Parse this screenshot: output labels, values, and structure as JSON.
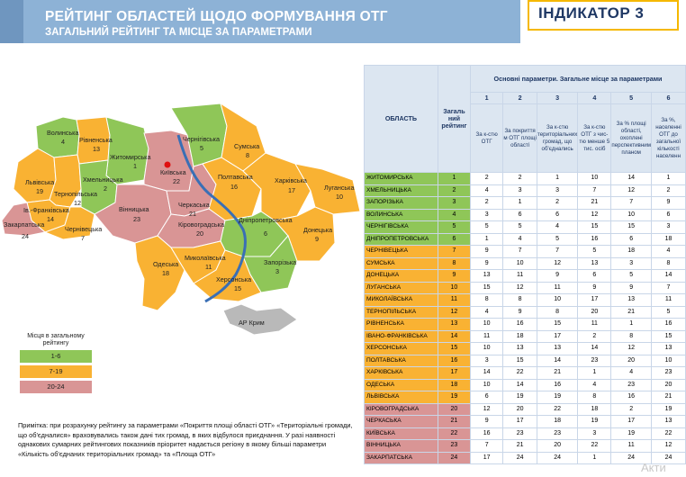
{
  "header": {
    "title": "РЕЙТИНГ ОБЛАСТЕЙ ЩОДО ФОРМУВАННЯ ОТГ",
    "subtitle": "ЗАГАЛЬНИЙ РЕЙТИНГ ТА МІСЦЕ ЗА ПАРАМЕТРАМИ",
    "indicator": "ІНДИКАТОР 3"
  },
  "colors": {
    "green": "#8fc658",
    "yellow": "#f9b233",
    "pink": "#d99595",
    "grey": "#b9b9b9"
  },
  "map": {
    "regions": [
      {
        "name": "Волинська",
        "rank": "4"
      },
      {
        "name": "Рівненська",
        "rank": "13"
      },
      {
        "name": "Житомирська",
        "rank": "1"
      },
      {
        "name": "Чернігівська",
        "rank": "5"
      },
      {
        "name": "Сумська",
        "rank": "8"
      },
      {
        "name": "Київська",
        "rank": "22"
      },
      {
        "name": "Львівська",
        "rank": "19"
      },
      {
        "name": "Хмельницька",
        "rank": "2"
      },
      {
        "name": "Тернопільська",
        "rank": "12"
      },
      {
        "name": "Ів.-Франківська",
        "rank": "14"
      },
      {
        "name": "Закарпатська",
        "rank": "24"
      },
      {
        "name": "Чернівецька",
        "rank": "7"
      },
      {
        "name": "Вінницька",
        "rank": "23"
      },
      {
        "name": "Черкаська",
        "rank": "21"
      },
      {
        "name": "Полтавська",
        "rank": "16"
      },
      {
        "name": "Харківська",
        "rank": "17"
      },
      {
        "name": "Луганська",
        "rank": "10"
      },
      {
        "name": "Кіровоградська",
        "rank": "20"
      },
      {
        "name": "Дніпропетровська",
        "rank": "6"
      },
      {
        "name": "Донецька",
        "rank": "9"
      },
      {
        "name": "Одеська",
        "rank": "18"
      },
      {
        "name": "Миколаївська",
        "rank": "11"
      },
      {
        "name": "Запорізька",
        "rank": "3"
      },
      {
        "name": "Херсонська",
        "rank": "15"
      },
      {
        "name": "АР Крим",
        "rank": ""
      }
    ]
  },
  "legend": {
    "title": "Місця в загальному рейтингу",
    "items": [
      "1-6",
      "7-19",
      "20-24"
    ]
  },
  "note": "Примітка: при розрахунку рейтингу за параметрами «Покриття площі області ОТГ» «Територіальні громади, що об'єдналися» враховувались також дані тих громад, в яких відбулося приєднання. У разі наявності однакових сумарних рейтингових показників пріоритет надається регіону в якому більші параметри «Кількість об'єднаних територіальних громад» та «Площа ОТГ»",
  "table": {
    "col_oblast": "ОБЛАСТЬ",
    "col_rating": "Загаль ний рейтинг",
    "group_header": "Основні параметри. Загальне місце за параметрами",
    "param_numbers": [
      "1",
      "2",
      "3",
      "4",
      "5",
      "6"
    ],
    "param_names": [
      "За к-стю ОТГ",
      "За покриття м ОТГ площі області",
      "За к-стю територіальних громад, що об'єднались",
      "За к-стю ОТГ з чис-тю менше 5 тис. осіб",
      "За % площі області, охоплені перспективним планом",
      "За %, населенні ОТГ до загальної кількості населенн"
    ],
    "rows": [
      {
        "name": "ЖИТОМИРСЬКА",
        "rank": "1",
        "p": [
          "2",
          "2",
          "1",
          "10",
          "14",
          "1"
        ],
        "color": "g"
      },
      {
        "name": "ХМЕЛЬНИЦЬКА",
        "rank": "2",
        "p": [
          "4",
          "3",
          "3",
          "7",
          "12",
          "2"
        ],
        "color": "g"
      },
      {
        "name": "ЗАПОРІЗЬКА",
        "rank": "3",
        "p": [
          "2",
          "1",
          "2",
          "21",
          "7",
          "9"
        ],
        "color": "g"
      },
      {
        "name": "ВОЛИНСЬКА",
        "rank": "4",
        "p": [
          "3",
          "6",
          "6",
          "12",
          "10",
          "6"
        ],
        "color": "g"
      },
      {
        "name": "ЧЕРНІГІВСЬКА",
        "rank": "5",
        "p": [
          "5",
          "5",
          "4",
          "15",
          "15",
          "3"
        ],
        "color": "g"
      },
      {
        "name": "ДНІПРОПЕТРОВСЬКА",
        "rank": "6",
        "p": [
          "1",
          "4",
          "5",
          "16",
          "6",
          "18"
        ],
        "color": "g"
      },
      {
        "name": "ЧЕРНІВЕЦЬКА",
        "rank": "7",
        "p": [
          "9",
          "7",
          "7",
          "5",
          "18",
          "4"
        ],
        "color": "y"
      },
      {
        "name": "СУМСЬКА",
        "rank": "8",
        "p": [
          "9",
          "10",
          "12",
          "13",
          "3",
          "8"
        ],
        "color": "y"
      },
      {
        "name": "ДОНЕЦЬКА",
        "rank": "9",
        "p": [
          "13",
          "11",
          "9",
          "6",
          "5",
          "14"
        ],
        "color": "y"
      },
      {
        "name": "ЛУГАНСЬКА",
        "rank": "10",
        "p": [
          "15",
          "12",
          "11",
          "9",
          "9",
          "7"
        ],
        "color": "y"
      },
      {
        "name": "МИКОЛАЇВСЬКА",
        "rank": "11",
        "p": [
          "8",
          "8",
          "10",
          "17",
          "13",
          "11"
        ],
        "color": "y"
      },
      {
        "name": "ТЕРНОПІЛЬСЬКА",
        "rank": "12",
        "p": [
          "4",
          "9",
          "8",
          "20",
          "21",
          "5"
        ],
        "color": "y"
      },
      {
        "name": "РІВНЕНСЬКА",
        "rank": "13",
        "p": [
          "10",
          "16",
          "15",
          "11",
          "1",
          "16"
        ],
        "color": "y"
      },
      {
        "name": "ІВАНО-ФРАНКІВСЬКА",
        "rank": "14",
        "p": [
          "11",
          "18",
          "17",
          "2",
          "8",
          "15"
        ],
        "color": "y"
      },
      {
        "name": "ХЕРСОНСЬКА",
        "rank": "15",
        "p": [
          "10",
          "13",
          "13",
          "14",
          "12",
          "13"
        ],
        "color": "y"
      },
      {
        "name": "ПОЛТАВСЬКА",
        "rank": "16",
        "p": [
          "3",
          "15",
          "14",
          "23",
          "20",
          "10"
        ],
        "color": "y"
      },
      {
        "name": "ХАРКІВСЬКА",
        "rank": "17",
        "p": [
          "14",
          "22",
          "21",
          "1",
          "4",
          "23"
        ],
        "color": "y"
      },
      {
        "name": "ОДЕСЬКА",
        "rank": "18",
        "p": [
          "10",
          "14",
          "16",
          "4",
          "23",
          "20"
        ],
        "color": "y"
      },
      {
        "name": "ЛЬВІВСЬКА",
        "rank": "19",
        "p": [
          "6",
          "19",
          "19",
          "8",
          "16",
          "21"
        ],
        "color": "y"
      },
      {
        "name": "КІРОВОГРАДСЬКА",
        "rank": "20",
        "p": [
          "12",
          "20",
          "22",
          "18",
          "2",
          "19"
        ],
        "color": "p"
      },
      {
        "name": "ЧЕРКАСЬКА",
        "rank": "21",
        "p": [
          "9",
          "17",
          "18",
          "19",
          "17",
          "13"
        ],
        "color": "p"
      },
      {
        "name": "КИЇВСЬКА",
        "rank": "22",
        "p": [
          "16",
          "23",
          "23",
          "3",
          "19",
          "22"
        ],
        "color": "p"
      },
      {
        "name": "ВІННИЦЬКА",
        "rank": "23",
        "p": [
          "7",
          "21",
          "20",
          "22",
          "11",
          "12"
        ],
        "color": "p"
      },
      {
        "name": "ЗАКАРПАТСЬКА",
        "rank": "24",
        "p": [
          "17",
          "24",
          "24",
          "1",
          "24",
          "24"
        ],
        "color": "p"
      }
    ]
  },
  "watermark": "Акти"
}
